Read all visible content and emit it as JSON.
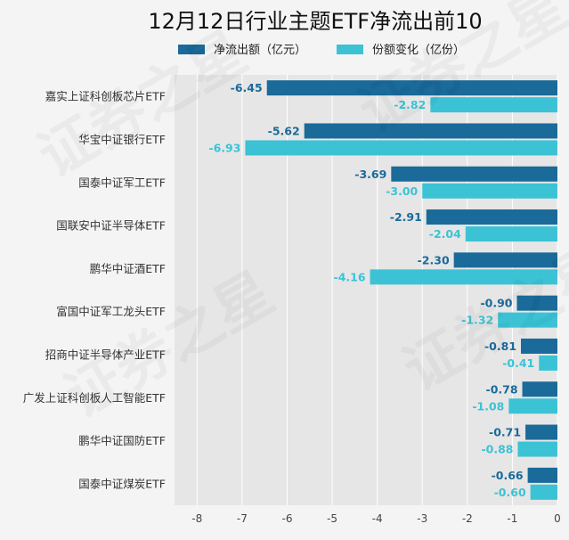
{
  "chart_data": {
    "type": "bar",
    "orientation": "horizontal",
    "title": "12月12日行业主题ETF净流出前10",
    "categories": [
      "嘉实上证科创板芯片ETF",
      "华宝中证银行ETF",
      "国泰中证军工ETF",
      "国联安中证半导体ETF",
      "鹏华中证酒ETF",
      "富国中证军工龙头ETF",
      "招商中证半导体产业ETF",
      "广发上证科创板人工智能ETF",
      "鹏华中证国防ETF",
      "国泰中证煤炭ETF"
    ],
    "series": [
      {
        "name": "净流出额（亿元）",
        "color": "#1a6a9a",
        "values": [
          -6.45,
          -5.62,
          -3.69,
          -2.91,
          -2.3,
          -0.9,
          -0.81,
          -0.78,
          -0.71,
          -0.66
        ],
        "labels": [
          "-6.45",
          "-5.62",
          "-3.69",
          "-2.91",
          "-2.30",
          "-0.90",
          "-0.81",
          "-0.78",
          "-0.71",
          "-0.66"
        ]
      },
      {
        "name": "份额变化（亿份）",
        "color": "#3bc3d5",
        "values": [
          -2.82,
          -6.93,
          -3.0,
          -2.04,
          -4.16,
          -1.32,
          -0.41,
          -1.08,
          -0.88,
          -0.6
        ],
        "labels": [
          "-2.82",
          "-6.93",
          "-3.00",
          "-2.04",
          "-4.16",
          "-1.32",
          "-0.41",
          "-1.08",
          "-0.88",
          "-0.60"
        ]
      }
    ],
    "xlim": [
      -8.5,
      0
    ],
    "xticks": [
      -8,
      -7,
      -6,
      -5,
      -4,
      -3,
      -2,
      -1,
      0
    ],
    "xtick_labels": [
      "-8",
      "-7",
      "-6",
      "-5",
      "-4",
      "-3",
      "-2",
      "-1",
      "0"
    ],
    "grid": true,
    "legend": "top"
  },
  "watermark": "证券之星",
  "colors": {
    "background": "#f4f4f4",
    "plot_background": "#e6e6e6",
    "grid": "#ffffff"
  }
}
